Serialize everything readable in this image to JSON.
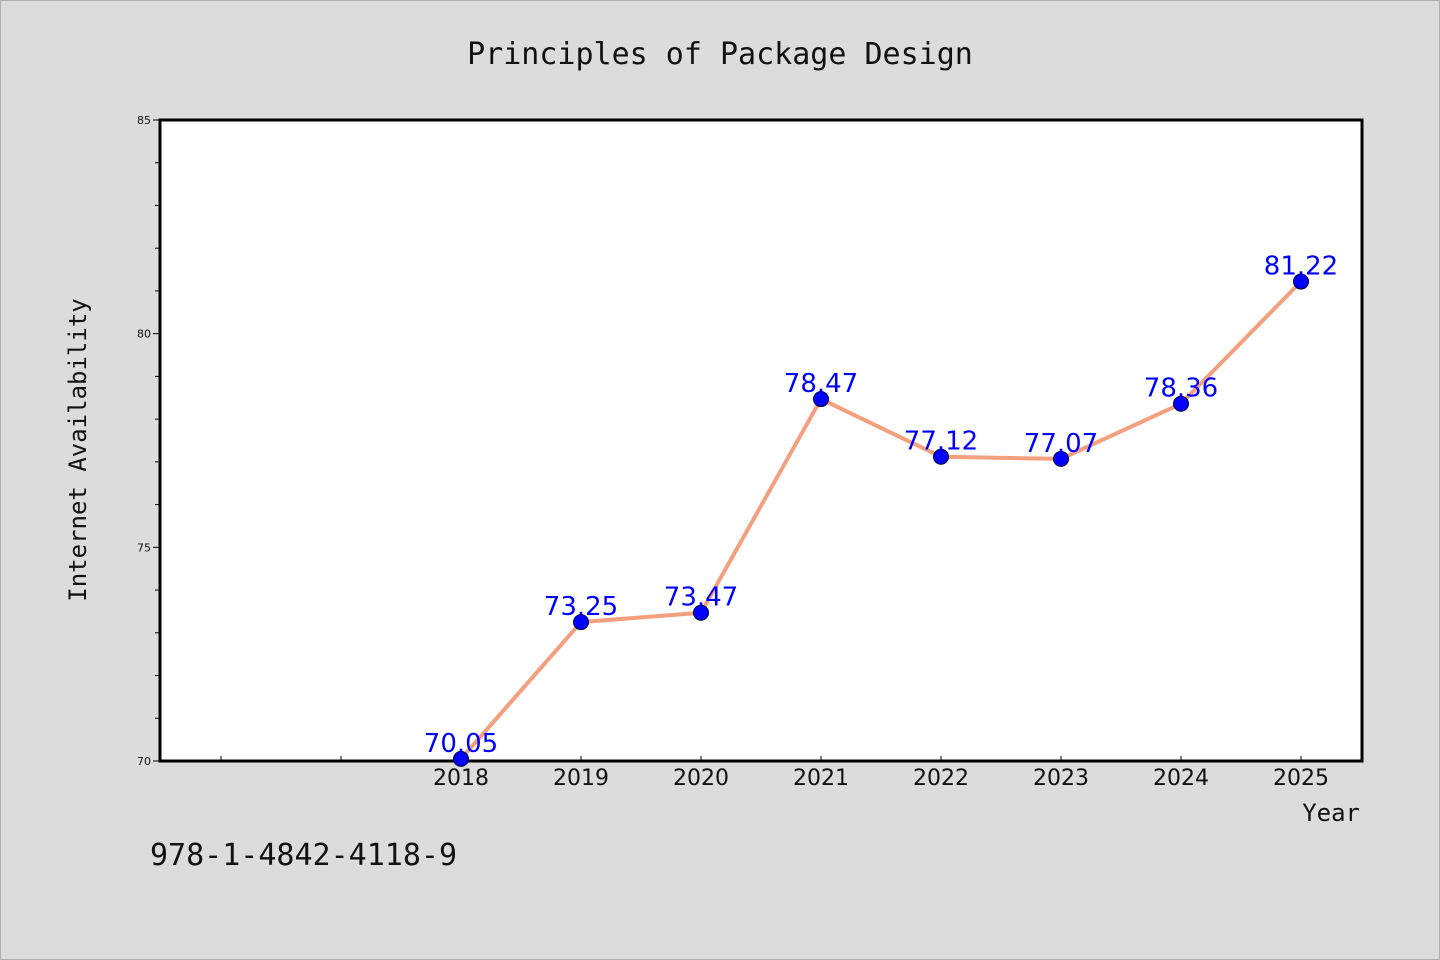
{
  "chart_data": {
    "type": "line",
    "title": "Principles of Package Design",
    "xlabel": "Year",
    "ylabel": "Internet Availability",
    "categories": [
      "2018",
      "2019",
      "2020",
      "2021",
      "2022",
      "2023",
      "2024",
      "2025"
    ],
    "series": [
      {
        "values": [
          70.05,
          73.25,
          73.47,
          78.47,
          77.12,
          77.07,
          78.36,
          81.22
        ],
        "line_color": "#f4a07e",
        "marker_color": "#0000ff"
      }
    ],
    "data_labels": [
      "70.05",
      "73.25",
      "73.47",
      "78.47",
      "77.12",
      "77.07",
      "78.36",
      "81.22"
    ],
    "ylim": [
      70,
      85
    ],
    "y_ticks": [
      "70",
      "75",
      "80",
      "85"
    ],
    "grid": false,
    "legend": "none"
  },
  "footer": {
    "isbn": "978-1-4842-4118-9"
  },
  "colors": {
    "background": "#dcdcdc",
    "plot_background": "#ffffff",
    "label_color": "#0000ff"
  }
}
